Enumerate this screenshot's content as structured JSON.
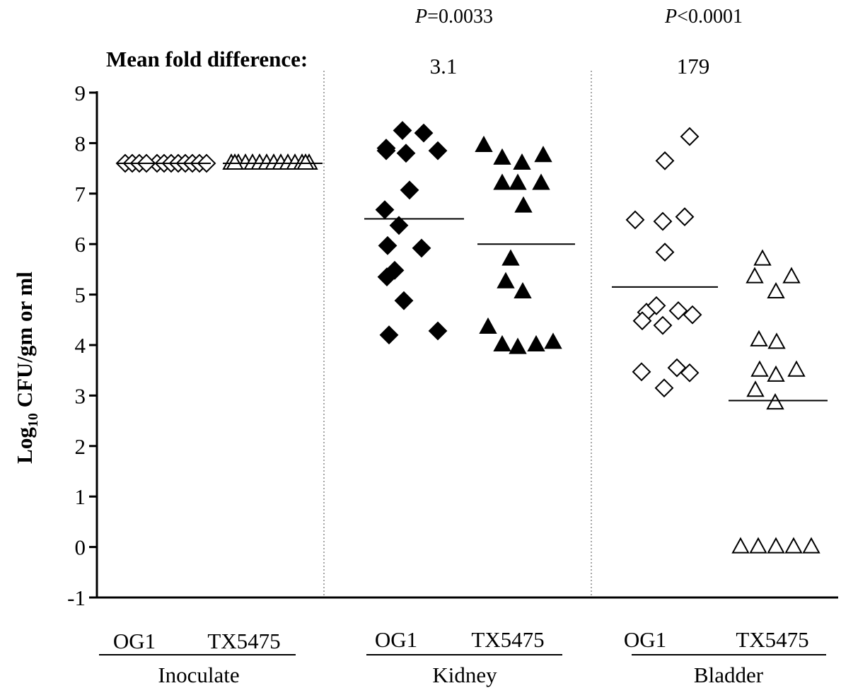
{
  "chart_data": {
    "type": "scatter",
    "ylabel_prefix": "Log",
    "ylabel_sub": "10",
    "ylabel_suffix": " CFU/gm or ml",
    "ylim": [
      -1,
      9
    ],
    "yticks": [
      "-1",
      "0",
      "1",
      "2",
      "3",
      "4",
      "5",
      "6",
      "7",
      "8",
      "9"
    ],
    "mean_fold_label": "Mean fold difference:",
    "groups": [
      {
        "name": "Inoculate",
        "fold": "",
        "p_prefix": "",
        "p_rest": "",
        "series": [
          {
            "name": "OG1",
            "marker": "diamond-open",
            "mean": 7.6,
            "values": [
              7.6,
              7.6,
              7.6,
              7.6,
              7.6,
              7.6,
              7.6,
              7.6,
              7.6,
              7.6,
              7.6,
              7.6
            ]
          },
          {
            "name": "TX5475",
            "marker": "triangle-open",
            "mean": 7.6,
            "values": [
              7.6,
              7.6,
              7.6,
              7.6,
              7.6,
              7.6,
              7.6,
              7.6,
              7.6,
              7.6,
              7.6,
              7.6,
              7.6,
              7.6
            ]
          }
        ]
      },
      {
        "name": "Kidney",
        "fold": "3.1",
        "p_prefix": "P",
        "p_rest": "=0.0033",
        "series": [
          {
            "name": "OG1",
            "marker": "diamond-filled",
            "mean": 6.5,
            "values": [
              7.9,
              7.85,
              8.25,
              8.2,
              7.8,
              7.85,
              7.07,
              6.68,
              6.37,
              5.97,
              5.92,
              5.35,
              5.48,
              4.88,
              4.2,
              4.28
            ]
          },
          {
            "name": "TX5475",
            "marker": "triangle-filled",
            "mean": 6.0,
            "values": [
              7.95,
              7.7,
              7.6,
              7.75,
              7.2,
              7.2,
              7.2,
              6.75,
              5.7,
              5.25,
              5.05,
              4.35,
              4.0,
              3.95,
              4.0,
              4.05
            ]
          }
        ]
      },
      {
        "name": "Bladder",
        "fold": "179",
        "p_prefix": "P",
        "p_rest": "<0.0001",
        "series": [
          {
            "name": "OG1",
            "marker": "diamond-open",
            "mean": 5.15,
            "values": [
              8.13,
              7.65,
              6.48,
              6.45,
              6.54,
              5.84,
              4.65,
              4.78,
              4.48,
              4.39,
              4.68,
              4.6,
              3.47,
              3.15,
              3.55,
              3.45
            ]
          },
          {
            "name": "TX5475",
            "marker": "triangle-open",
            "mean": 2.9,
            "values": [
              5.7,
              5.35,
              5.35,
              5.05,
              4.1,
              4.05,
              3.5,
              3.4,
              3.5,
              3.1,
              2.85,
              0.0,
              0.0,
              0.0,
              0.0,
              0.0
            ]
          }
        ]
      }
    ]
  }
}
